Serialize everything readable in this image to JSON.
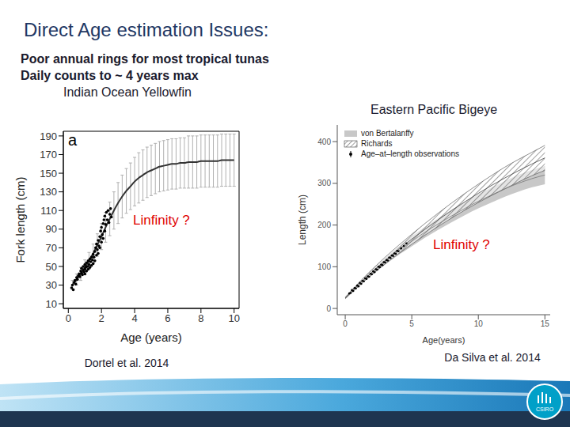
{
  "title": "Direct Age estimation Issues:",
  "bullets": [
    "Poor annual rings for most tropical tunas",
    "Daily counts to ~ 4 years max"
  ],
  "logo": "CSIRO",
  "chart_data": [
    {
      "type": "scatter",
      "subtitle": "Indian Ocean Yellowfin",
      "panel_label": "a",
      "x_label": "Age (years)",
      "y_label": "Fork length (cm)",
      "xlim": [
        -0.3,
        10.3
      ],
      "xticks": [
        0,
        2,
        4,
        6,
        8,
        10
      ],
      "ylim": [
        5,
        195
      ],
      "yticks": [
        10,
        30,
        50,
        70,
        90,
        110,
        130,
        150,
        170,
        190
      ],
      "series": [
        {
          "type": "scatter",
          "color": "#000000",
          "marker": "circle",
          "x": [
            0.2,
            0.25,
            0.3,
            0.35,
            0.4,
            0.45,
            0.5,
            0.55,
            0.6,
            0.65,
            0.7,
            0.75,
            0.8,
            0.8,
            0.85,
            0.9,
            0.9,
            0.95,
            1.0,
            1.0,
            1.0,
            1.05,
            1.1,
            1.1,
            1.15,
            1.2,
            1.2,
            1.25,
            1.3,
            1.3,
            1.35,
            1.4,
            1.4,
            1.45,
            1.5,
            1.5,
            1.55,
            1.6,
            1.6,
            1.65,
            1.7,
            1.7,
            1.75,
            1.8,
            1.8,
            1.85,
            1.9,
            1.9,
            1.95,
            2.0,
            2.0,
            2.05,
            2.1,
            2.1,
            2.15,
            2.2,
            2.2,
            2.25,
            2.3,
            2.35,
            2.4,
            2.45,
            2.5,
            2.55,
            2.6
          ],
          "values": [
            27,
            30,
            25,
            33,
            35,
            31,
            38,
            36,
            40,
            42,
            39,
            45,
            43,
            48,
            41,
            46,
            50,
            44,
            47,
            52,
            42,
            49,
            45,
            54,
            50,
            47,
            56,
            52,
            49,
            58,
            55,
            51,
            60,
            57,
            53,
            63,
            60,
            66,
            56,
            70,
            62,
            74,
            68,
            78,
            64,
            72,
            82,
            70,
            88,
            76,
            92,
            84,
            96,
            80,
            100,
            88,
            104,
            95,
            108,
            100,
            110,
            97,
            106,
            112,
            103
          ]
        },
        {
          "type": "line",
          "color": "#333333",
          "x": [
            0.25,
            0.5,
            0.75,
            1.0,
            1.25,
            1.5,
            1.75,
            2.0,
            2.25,
            2.5,
            2.75,
            3.0,
            3.25,
            3.5,
            3.75,
            4.0,
            4.25,
            4.5,
            4.75,
            5.0,
            5.25,
            5.5,
            5.75,
            6.0,
            6.25,
            6.5,
            6.75,
            7.0,
            7.25,
            7.5,
            7.75,
            8.0,
            8.25,
            8.5,
            8.75,
            9.0,
            9.25,
            9.5,
            9.75,
            10.0
          ],
          "values": [
            30,
            36,
            42,
            49,
            56,
            64,
            73,
            82,
            92,
            101,
            110,
            118,
            125,
            131,
            136,
            141,
            145,
            148,
            151,
            153,
            155,
            157,
            158,
            159,
            160,
            160,
            161,
            161,
            162,
            162,
            162,
            163,
            163,
            163,
            163,
            163,
            164,
            164,
            164,
            164
          ],
          "error": [
            5,
            6,
            7,
            8,
            9,
            10,
            12,
            14,
            16,
            18,
            20,
            22,
            23,
            24,
            25,
            26,
            27,
            27,
            27,
            27,
            27,
            27,
            27,
            27,
            27,
            27,
            27,
            27,
            28,
            28,
            28,
            28,
            28,
            28,
            28,
            28,
            28,
            28,
            28,
            28
          ]
        }
      ],
      "annotations": [
        "Linfinity ?"
      ],
      "source": "Dortel et al. 2014"
    },
    {
      "type": "area",
      "subtitle": "Eastern Pacific Bigeye",
      "x_label": "Age(years)",
      "y_label": "Length (cm)",
      "xlim": [
        -0.6,
        15.4
      ],
      "xticks": [
        0,
        5,
        10,
        15
      ],
      "ylim": [
        -15,
        440
      ],
      "yticks": [
        0,
        100,
        200,
        300,
        400
      ],
      "legend": "upper left",
      "series": [
        {
          "name": "von Bertalanffy",
          "type": "area",
          "color": "#c8c8c8",
          "x": [
            0,
            1,
            2,
            3,
            4,
            5,
            6,
            7,
            8,
            9,
            10,
            11,
            12,
            13,
            14,
            15
          ],
          "values": [
            25,
            57,
            86,
            113,
            138,
            161,
            183,
            203,
            222,
            240,
            257,
            272,
            287,
            300,
            311,
            320
          ],
          "error": [
            2,
            4,
            6,
            8,
            10,
            12,
            13,
            14,
            15,
            16,
            17,
            18,
            19,
            20,
            21,
            22
          ]
        },
        {
          "name": "Richards",
          "type": "area",
          "color": "#444444",
          "x": [
            0,
            1,
            2,
            3,
            4,
            5,
            6,
            7,
            8,
            9,
            10,
            11,
            12,
            13,
            14,
            15
          ],
          "values": [
            25,
            57,
            87,
            115,
            141,
            166,
            190,
            213,
            235,
            256,
            276,
            295,
            313,
            330,
            346,
            361
          ],
          "error": [
            2,
            4,
            6,
            8,
            10,
            12,
            14,
            16,
            18,
            20,
            22,
            24,
            26,
            27,
            28,
            30
          ]
        },
        {
          "name": "Age–at–length observations",
          "type": "scatter",
          "color": "#000000",
          "marker": "circle",
          "x": [
            0.3,
            0.4,
            0.5,
            0.6,
            0.7,
            0.8,
            0.9,
            1.0,
            1.1,
            1.2,
            1.3,
            1.4,
            1.5,
            1.6,
            1.7,
            1.8,
            1.9,
            2.0,
            2.1,
            2.2,
            2.3,
            2.4,
            2.5,
            2.6,
            2.7,
            2.8,
            2.9,
            3.0,
            3.1,
            3.2,
            3.3,
            3.4,
            3.5,
            3.6,
            3.7,
            3.8,
            3.9,
            4.0,
            4.2,
            4.4,
            4.6
          ],
          "values": [
            36,
            37,
            44,
            42,
            49,
            48,
            55,
            53,
            61,
            59,
            66,
            65,
            72,
            71,
            77,
            76,
            83,
            82,
            89,
            87,
            94,
            93,
            100,
            99,
            105,
            104,
            111,
            110,
            116,
            115,
            122,
            121,
            127,
            126,
            132,
            131,
            138,
            137,
            144,
            150,
            156
          ]
        }
      ],
      "annotations": [
        "Linfinity ?"
      ],
      "source": "Da Silva et al. 2014"
    }
  ]
}
